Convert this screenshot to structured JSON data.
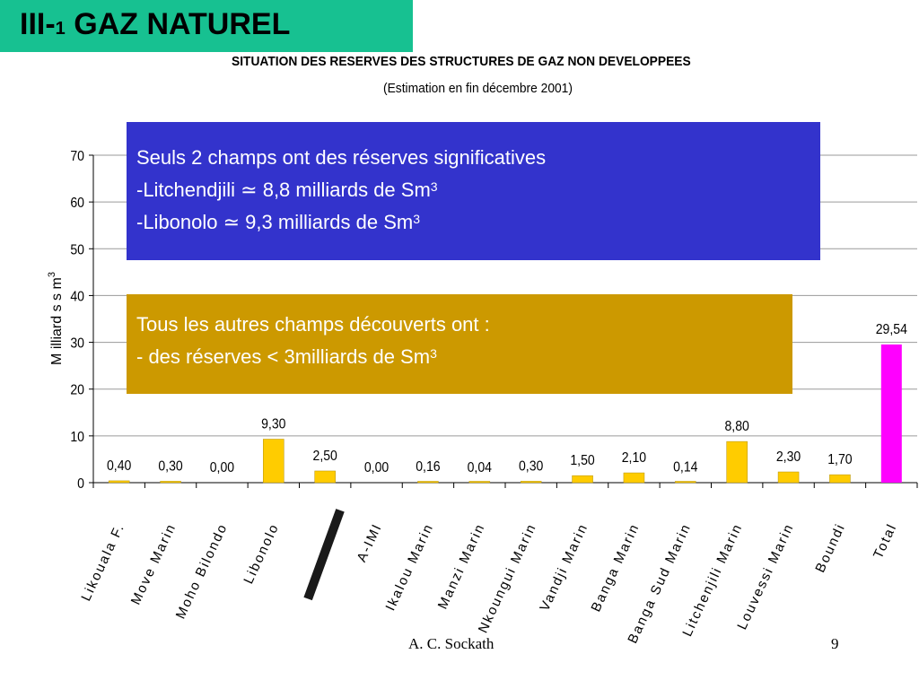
{
  "slide": {
    "title_prefix": "III-",
    "title_number": "1",
    "title_main": " GAZ NATUREL",
    "author": "A. C. Sockath",
    "page_number": "9",
    "accent_color": "#17c191"
  },
  "chart_data": {
    "type": "bar",
    "title": "SITUATION   DES RESERVES DES STRUCTURES DE GAZ   NON   DEVELOPPEES",
    "subtitle": "(Estimation  en fin décembre 2001)",
    "ylabel": "M illiard s  s m",
    "ylabel_sup": "3",
    "ylim": [
      0,
      70
    ],
    "yticks": [
      0,
      10,
      20,
      30,
      40,
      50,
      60,
      70
    ],
    "grid": true,
    "categories": [
      "Likouala F.",
      "Move Marin",
      "Moho Bilondo",
      "Libonolo",
      "",
      "A-IMI",
      "Ikalou Marin",
      "Manzi Marin",
      "Nkoungui Marin",
      "Vandji Marin",
      "Banga Marin",
      "Banga Sud Marin",
      "Litchenjili Marin",
      "Louvessi Marin",
      "Boundi",
      "Total"
    ],
    "values": [
      0.4,
      0.3,
      0.0,
      9.3,
      2.5,
      0.0,
      0.16,
      0.04,
      0.3,
      1.5,
      2.1,
      0.14,
      8.8,
      2.3,
      1.7,
      29.54
    ],
    "data_labels": [
      "0,40",
      "0,30",
      "0,00",
      "9,30",
      "2,50",
      "0,00",
      "0,16",
      "0,04",
      "0,30",
      "1,50",
      "2,10",
      "0,14",
      "8,80",
      "2,30",
      "1,70",
      "29,54"
    ],
    "bar_color": "#ffcc00",
    "total_color": "#ff00ff"
  },
  "callouts": {
    "blue": {
      "line1": "Seuls 2 champs ont des réserves significatives",
      "line2": "-Litchendjili ≃ 8,8 milliards de Sm",
      "line2_sup": "3",
      "line3": "-Libonolo ≃ 9,3 milliards de Sm",
      "line3_sup": "3",
      "color": "#3333cc"
    },
    "gold": {
      "line1": "Tous les autres champs découverts ont :",
      "line2": "- des réserves < 3milliards de Sm",
      "line2_sup": "3",
      "color": "#cc9900"
    }
  }
}
